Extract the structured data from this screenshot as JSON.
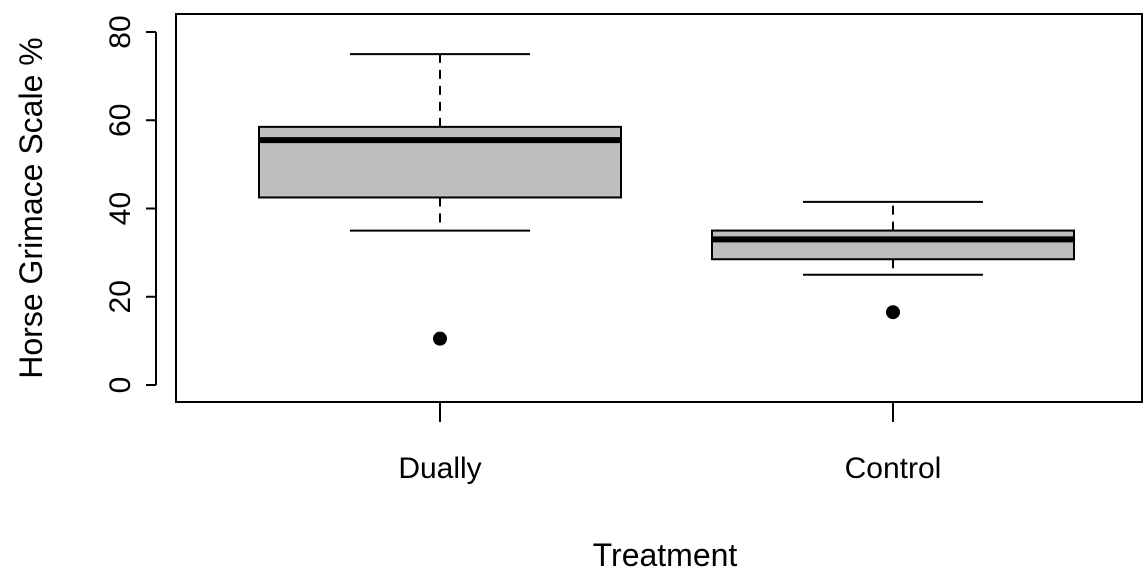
{
  "chart_data": {
    "type": "boxplot",
    "title": "",
    "xlabel": "Treatment",
    "ylabel": "Horse Grimace Scale %",
    "ylim": [
      -4,
      84
    ],
    "yticks": [
      0,
      20,
      40,
      60,
      80
    ],
    "grid": false,
    "categories": [
      "Dually",
      "Control"
    ],
    "boxes": [
      {
        "category": "Dually",
        "whisker_low": 35,
        "q1": 42.5,
        "median": 55.5,
        "q3": 58.5,
        "whisker_high": 75,
        "outliers": [
          10.5
        ]
      },
      {
        "category": "Control",
        "whisker_low": 25,
        "q1": 28.5,
        "median": 33,
        "q3": 35,
        "whisker_high": 41.5,
        "outliers": [
          16.5
        ]
      }
    ],
    "colors": {
      "box_fill": "#bebebe",
      "stroke": "#000000"
    }
  }
}
